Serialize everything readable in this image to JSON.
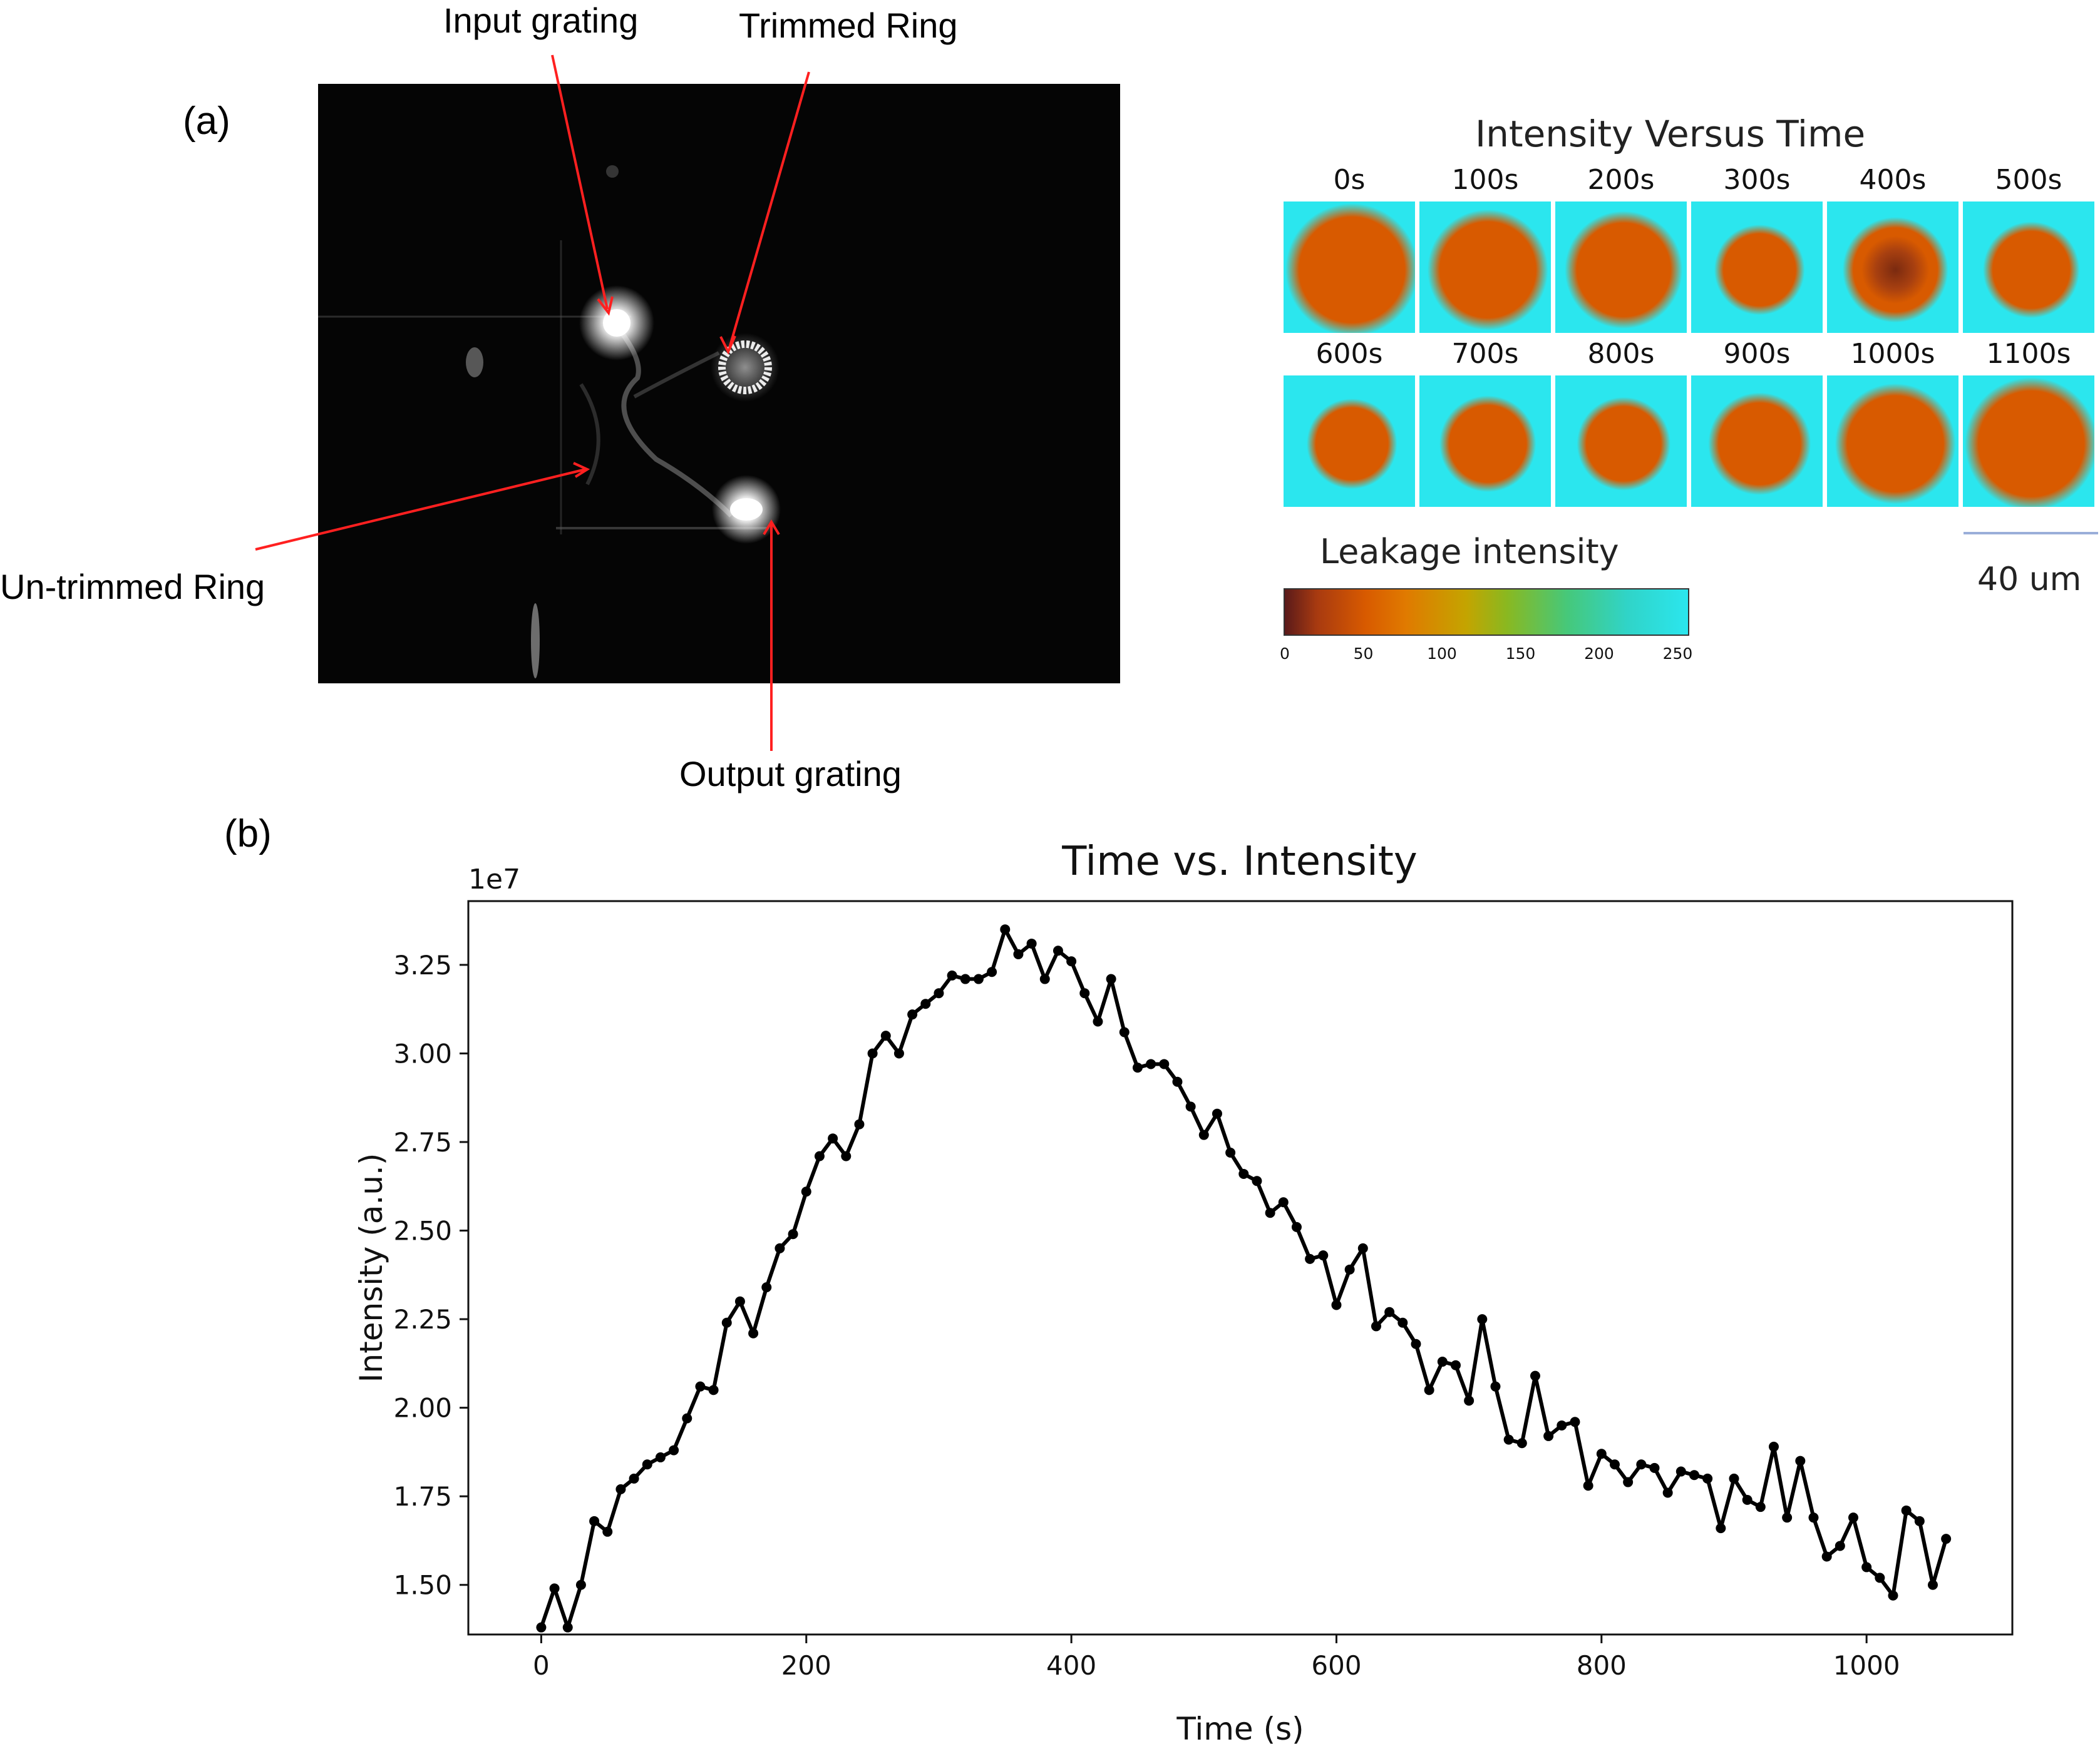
{
  "panel_a": {
    "label": "(a)",
    "annotations": {
      "input_grating": "Input grating",
      "trimmed_ring": "Trimmed Ring",
      "untrimmed_ring": "Un-trimmed Ring",
      "output_grating": "Output grating"
    },
    "heatmap": {
      "title": "Intensity Versus Time",
      "row1": [
        "0s",
        "100s",
        "200s",
        "300s",
        "400s",
        "500s"
      ],
      "row2": [
        "600s",
        "700s",
        "800s",
        "900s",
        "1000s",
        "1100s"
      ],
      "colorbar_label": "Leakage intensity",
      "colorbar_ticks": [
        "0",
        "50",
        "100",
        "150",
        "200",
        "250"
      ],
      "scale_bar": "40 um"
    }
  },
  "panel_b": {
    "label": "(b)"
  },
  "chart_data": {
    "type": "line",
    "title": "Time vs. Intensity",
    "xlabel": "Time (s)",
    "ylabel": "Intensity (a.u.)",
    "y_offset_label": "1e7",
    "xlim": [
      -55,
      1110
    ],
    "ylim": [
      1.36,
      3.43
    ],
    "x_ticks": [
      "0",
      "200",
      "400",
      "600",
      "800",
      "1000"
    ],
    "y_ticks": [
      "1.50",
      "1.75",
      "2.00",
      "2.25",
      "2.50",
      "2.75",
      "3.00",
      "3.25"
    ],
    "x": [
      0,
      10,
      20,
      30,
      40,
      50,
      60,
      70,
      80,
      90,
      100,
      110,
      120,
      130,
      140,
      150,
      160,
      170,
      180,
      190,
      200,
      210,
      220,
      230,
      240,
      250,
      260,
      270,
      280,
      290,
      300,
      310,
      320,
      330,
      340,
      350,
      360,
      370,
      380,
      390,
      400,
      410,
      420,
      430,
      440,
      450,
      460,
      470,
      480,
      490,
      500,
      510,
      520,
      530,
      540,
      550,
      560,
      570,
      580,
      590,
      600,
      610,
      620,
      630,
      640,
      650,
      660,
      670,
      680,
      690,
      700,
      710,
      720,
      730,
      740,
      750,
      760,
      770,
      780,
      790,
      800,
      810,
      820,
      830,
      840,
      850,
      860,
      870,
      880,
      890,
      900,
      910,
      920,
      930,
      940,
      950,
      960,
      970,
      980,
      990,
      1000,
      1010,
      1020,
      1030,
      1040,
      1050,
      1060
    ],
    "y": [
      1.38,
      1.49,
      1.38,
      1.5,
      1.68,
      1.65,
      1.77,
      1.8,
      1.84,
      1.86,
      1.88,
      1.97,
      2.06,
      2.05,
      2.24,
      2.3,
      2.21,
      2.34,
      2.45,
      2.49,
      2.61,
      2.71,
      2.76,
      2.71,
      2.8,
      3.0,
      3.05,
      3.0,
      3.11,
      3.14,
      3.17,
      3.22,
      3.21,
      3.21,
      3.23,
      3.35,
      3.28,
      3.31,
      3.21,
      3.29,
      3.26,
      3.17,
      3.09,
      3.21,
      3.06,
      2.96,
      2.97,
      2.97,
      2.92,
      2.85,
      2.77,
      2.83,
      2.72,
      2.66,
      2.64,
      2.55,
      2.58,
      2.51,
      2.42,
      2.43,
      2.29,
      2.39,
      2.45,
      2.23,
      2.27,
      2.24,
      2.18,
      2.05,
      2.13,
      2.12,
      2.02,
      2.25,
      2.06,
      1.91,
      1.9,
      2.09,
      1.92,
      1.95,
      1.96,
      1.78,
      1.87,
      1.84,
      1.79,
      1.84,
      1.83,
      1.76,
      1.82,
      1.81,
      1.8,
      1.66,
      1.8,
      1.74,
      1.72,
      1.89,
      1.69,
      1.85,
      1.69,
      1.58,
      1.61,
      1.69,
      1.55,
      1.52,
      1.47,
      1.71,
      1.68,
      1.5,
      1.63
    ],
    "series": [
      {
        "values_ref": "y",
        "color": "#000000"
      }
    ],
    "grid": false
  },
  "colors": {
    "heat_low": "#d85a00",
    "heat_high": "#2be6ee",
    "arrow": "#ff2020",
    "scale_bar": "#9aaed9"
  }
}
